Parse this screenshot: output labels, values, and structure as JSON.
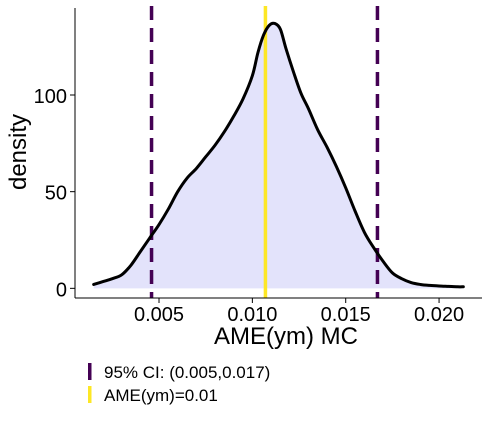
{
  "chart_data": {
    "type": "area",
    "title": "",
    "xlabel": "AME(ym) MC",
    "ylabel": "density",
    "xlim": [
      0.0005,
      0.0223
    ],
    "ylim": [
      -5,
      145
    ],
    "x_ticks": [
      0.005,
      0.01,
      0.015,
      0.02
    ],
    "x_tick_labels": [
      "0.005",
      "0.010",
      "0.015",
      "0.020"
    ],
    "y_ticks": [
      0,
      50,
      100
    ],
    "y_tick_labels": [
      "0",
      "50",
      "100"
    ],
    "grid": false,
    "legend_position": "bottom-left",
    "colors": {
      "fill": "#e3e3fb",
      "curve": "#000000",
      "ci": "#440154",
      "point": "#fde725"
    },
    "density": {
      "x": [
        0.0015,
        0.002,
        0.0025,
        0.003,
        0.0035,
        0.004,
        0.0045,
        0.005,
        0.0055,
        0.006,
        0.0065,
        0.007,
        0.0075,
        0.008,
        0.0085,
        0.009,
        0.0095,
        0.01,
        0.0103,
        0.0106,
        0.0109,
        0.0112,
        0.0115,
        0.0118,
        0.0122,
        0.0126,
        0.013,
        0.0135,
        0.014,
        0.0145,
        0.015,
        0.0155,
        0.016,
        0.0165,
        0.017,
        0.0175,
        0.018,
        0.0185,
        0.019,
        0.0195,
        0.02,
        0.0205,
        0.021,
        0.0213
      ],
      "y": [
        2,
        3.5,
        5,
        7,
        12,
        19,
        26,
        33,
        41,
        50,
        57,
        62,
        68,
        74,
        81,
        89,
        98,
        110,
        122,
        131,
        136,
        137,
        134,
        124,
        112,
        101,
        93,
        82,
        73,
        63,
        52,
        40,
        29,
        21,
        14,
        8,
        5,
        3,
        2,
        1.5,
        1.2,
        1.0,
        0.8,
        0.8
      ]
    },
    "ci": [
      0.0046,
      0.0167
    ],
    "point_estimate": 0.0107
  },
  "legend": [
    {
      "label": "95% CI: (0.005,0.017)",
      "kind": "ci"
    },
    {
      "label": "AME(ym)=0.01",
      "kind": "point"
    }
  ]
}
